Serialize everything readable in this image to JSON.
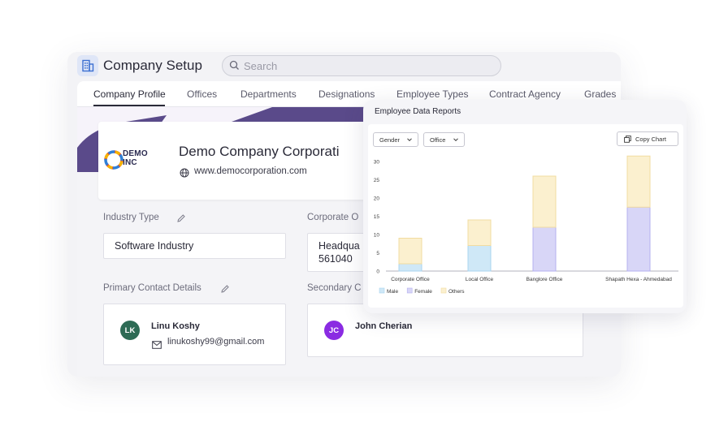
{
  "app": {
    "title": "Company Setup",
    "icon": "building-icon"
  },
  "search": {
    "placeholder": "Search"
  },
  "tabs": [
    {
      "label": "Company Profile",
      "active": true
    },
    {
      "label": "Offices"
    },
    {
      "label": "Departments"
    },
    {
      "label": "Designations"
    },
    {
      "label": "Employee Types"
    },
    {
      "label": "Contract Agency"
    },
    {
      "label": "Grades"
    }
  ],
  "company": {
    "logo_text_line1": "DEMO",
    "logo_text_line2": "INC",
    "name": "Demo Company Corporati",
    "website": "www.democorporation.com"
  },
  "fields": {
    "industry_label": "Industry Type",
    "industry_value": "Software Industry",
    "corporate_label": "Corporate O",
    "corporate_value_line1": "Headqua",
    "corporate_value_line2": "561040",
    "primary_contact_label": "Primary Contact Details",
    "secondary_contact_label": "Secondary C"
  },
  "contacts": {
    "primary": {
      "initials": "LK",
      "name": "Linu Koshy",
      "email": "linukoshy99@gmail.com",
      "color": "#2e6b55"
    },
    "secondary": {
      "initials": "JC",
      "name": "John Cherian",
      "color": "#8a2be2"
    }
  },
  "report": {
    "title": "Employee Data Reports",
    "filter_gender": "Gender",
    "filter_office": "Office",
    "copy_label": "Copy Chart"
  },
  "chart_data": {
    "type": "bar",
    "stacked": true,
    "categories": [
      "Corporate Office",
      "Local Office",
      "Banglore Office",
      "Shapath Hexa - Ahmedabad"
    ],
    "series": [
      {
        "name": "Male",
        "values": [
          2,
          7,
          0,
          0
        ],
        "color": "#cfe8f7",
        "stroke": "#a9d4ef"
      },
      {
        "name": "Female",
        "values": [
          0,
          0,
          12,
          17.5
        ],
        "color": "#d8d6f7",
        "stroke": "#b4b0ef"
      },
      {
        "name": "Others",
        "values": [
          7,
          7,
          14,
          14
        ],
        "color": "#fbf0cf",
        "stroke": "#f2dca0"
      }
    ],
    "ylim": [
      0,
      30
    ],
    "yticks": [
      0,
      5,
      10,
      15,
      20,
      25,
      30
    ],
    "legend": "bottom-left",
    "grid": false
  }
}
